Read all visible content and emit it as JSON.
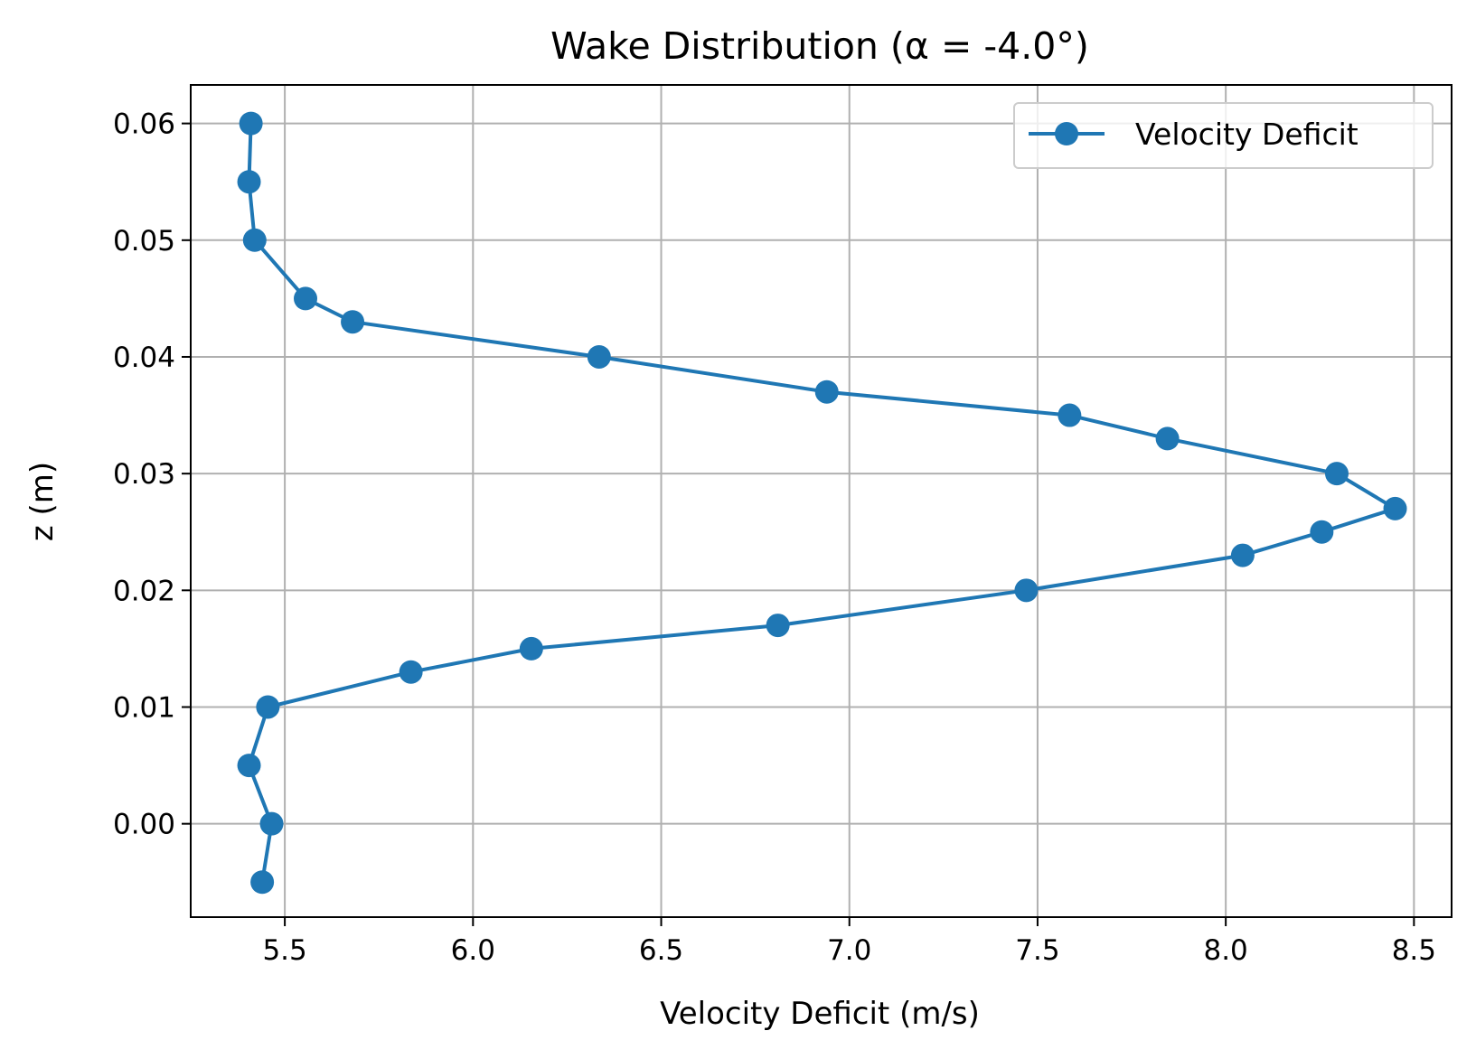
{
  "chart_data": {
    "type": "line",
    "title": "Wake Distribution (α = -4.0°)",
    "xlabel": "Velocity Deficit (m/s)",
    "ylabel": "z (m)",
    "xlim": [
      5.25,
      8.6
    ],
    "ylim": [
      -0.008,
      0.0633
    ],
    "xticks": [
      5.5,
      6.0,
      6.5,
      7.0,
      7.5,
      8.0,
      8.5
    ],
    "xtick_labels": [
      "5.5",
      "6.0",
      "6.5",
      "7.0",
      "7.5",
      "8.0",
      "8.5"
    ],
    "yticks": [
      0.0,
      0.01,
      0.02,
      0.03,
      0.04,
      0.05,
      0.06
    ],
    "ytick_labels": [
      "0.00",
      "0.01",
      "0.02",
      "0.03",
      "0.04",
      "0.05",
      "0.06"
    ],
    "grid": true,
    "legend_position": "top-right",
    "series": [
      {
        "name": "Velocity Deficit",
        "color": "#1f77b4",
        "marker": "circle",
        "points": [
          {
            "x": 5.44,
            "y": -0.005
          },
          {
            "x": 5.465,
            "y": 0.0
          },
          {
            "x": 5.405,
            "y": 0.005
          },
          {
            "x": 5.455,
            "y": 0.01
          },
          {
            "x": 5.835,
            "y": 0.013
          },
          {
            "x": 6.155,
            "y": 0.015
          },
          {
            "x": 6.81,
            "y": 0.017
          },
          {
            "x": 7.47,
            "y": 0.02
          },
          {
            "x": 8.045,
            "y": 0.023
          },
          {
            "x": 8.255,
            "y": 0.025
          },
          {
            "x": 8.45,
            "y": 0.027
          },
          {
            "x": 8.295,
            "y": 0.03
          },
          {
            "x": 7.845,
            "y": 0.033
          },
          {
            "x": 7.585,
            "y": 0.035
          },
          {
            "x": 6.94,
            "y": 0.037
          },
          {
            "x": 6.335,
            "y": 0.04
          },
          {
            "x": 5.68,
            "y": 0.043
          },
          {
            "x": 5.555,
            "y": 0.045
          },
          {
            "x": 5.42,
            "y": 0.05
          },
          {
            "x": 5.405,
            "y": 0.055
          },
          {
            "x": 5.41,
            "y": 0.06
          }
        ]
      }
    ]
  }
}
